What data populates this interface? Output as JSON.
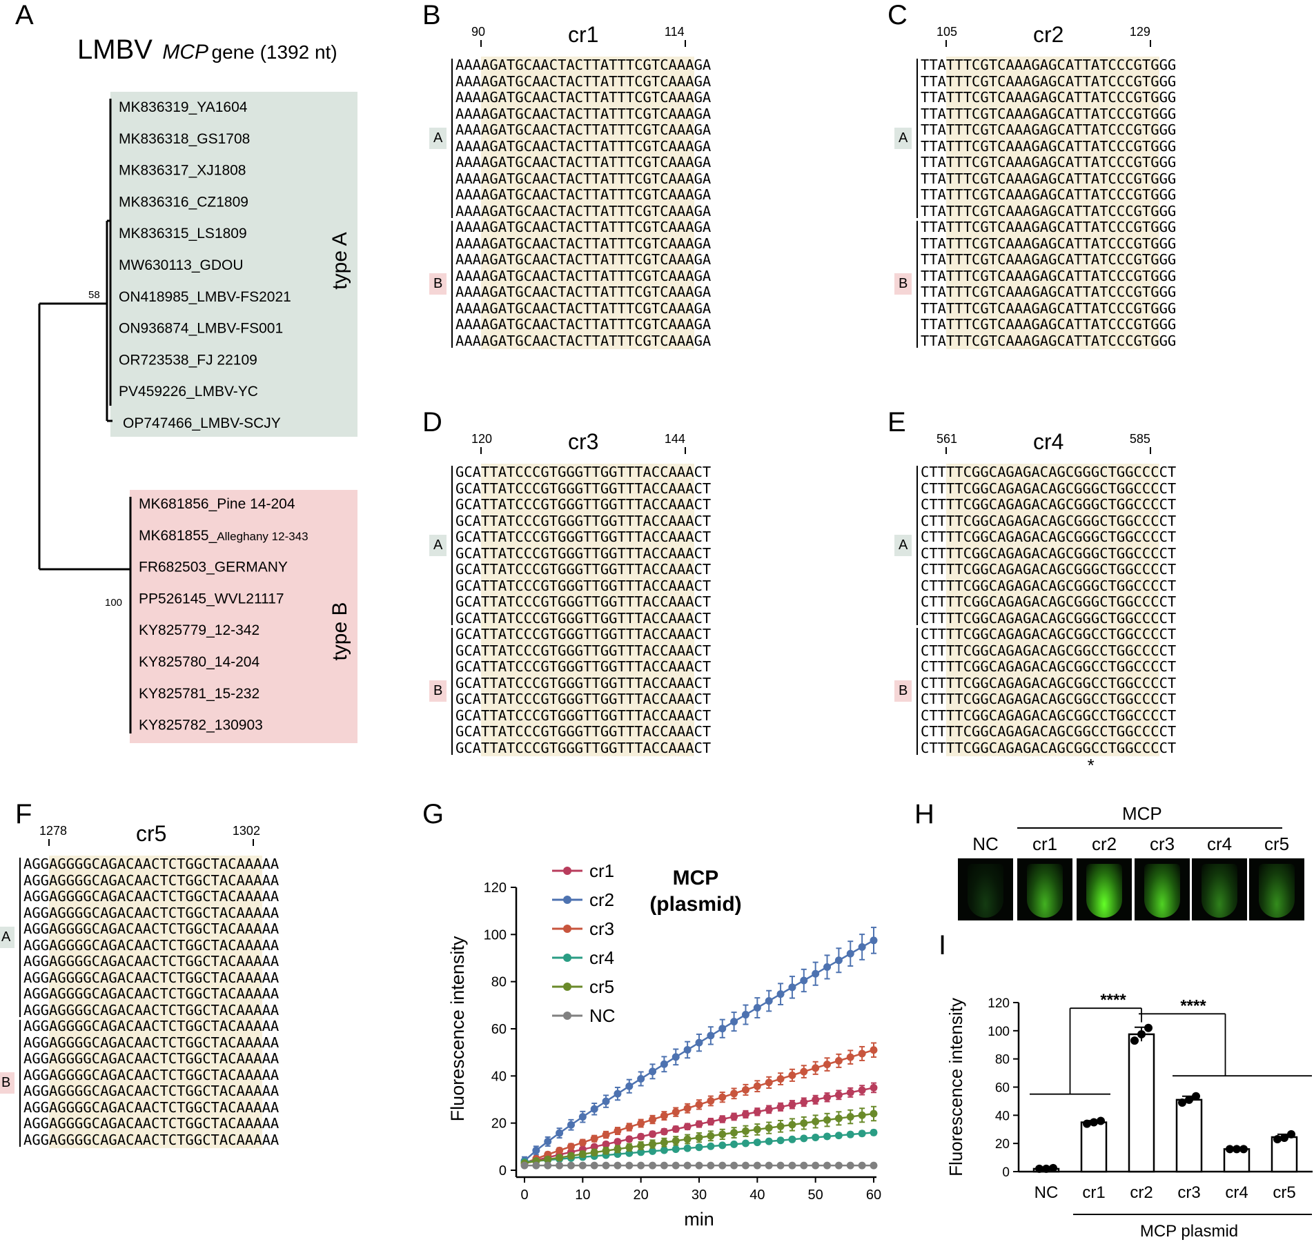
{
  "panels": {
    "A": "A",
    "B": "B",
    "C": "C",
    "D": "D",
    "E": "E",
    "F": "F",
    "G": "G",
    "H": "H",
    "I": "I"
  },
  "tree": {
    "title_prefix": "LMBV",
    "title_gene": "MCP",
    "title_suffix": "gene  (1392 nt)",
    "typeA_label": "type A",
    "typeB_label": "type B",
    "bootstrap_A": "58",
    "bootstrap_B": "100",
    "typeA_color": "#dbe5df",
    "typeB_color": "#f5d4d4",
    "typeA_taxa": [
      "MK836319_YA1604",
      "MK836318_GS1708",
      "MK836317_XJ1808",
      "MK836316_CZ1809",
      "MK836315_LS1809",
      "MW630113_GDOU",
      "ON418985_LMBV-FS2021",
      "ON936874_LMBV-FS001",
      "OR723538_FJ 22109",
      "PV459226_LMBV-YC",
      "OP747466_LMBV-SCJY"
    ],
    "typeB_taxa": [
      {
        "main": "MK681856_Pine 14-204",
        "small": ""
      },
      {
        "main": "MK681855_",
        "small": "Alleghany 12-343"
      },
      {
        "main": "FR682503_GERMANY",
        "small": ""
      },
      {
        "main": "PP526145_WVL21117",
        "small": ""
      },
      {
        "main": "KY825779_12-342",
        "small": ""
      },
      {
        "main": "KY825780_14-204",
        "small": ""
      },
      {
        "main": "KY825781_15-232",
        "small": ""
      },
      {
        "main": "KY825782_130903",
        "small": ""
      }
    ]
  },
  "group_tags": {
    "A": "A",
    "B": "B"
  },
  "alignments": {
    "cr1": {
      "name": "cr1",
      "start": "90",
      "end": "114",
      "prefix": "AAA",
      "core": "AGATGCAACTACTTATTTCGTCAAA",
      "suffix": "GA",
      "rows_A": 10,
      "rows_B": 8,
      "variant_B": ""
    },
    "cr2": {
      "name": "cr2",
      "start": "105",
      "end": "129",
      "prefix": "TTA",
      "core": "TTTCGTCAAAGAGCATTATCCCGTG",
      "suffix": "GG",
      "rows_A": 10,
      "rows_B": 8,
      "variant_B": ""
    },
    "cr3": {
      "name": "cr3",
      "start": "120",
      "end": "144",
      "prefix": "GCA",
      "core": "TTATCCCGTGGGTTGGTTTACCAAA",
      "suffix": "CT",
      "rows_A": 10,
      "rows_B": 8,
      "variant_B": ""
    },
    "cr4": {
      "name": "cr4",
      "start": "561",
      "end": "585",
      "prefix": "CTT",
      "core": "TTCGGCAGAGACAGCGGGCTGGCCC",
      "suffix": "CT",
      "rows_A": 10,
      "rows_B": 8,
      "variant_B": "TTCGGCAGAGACAGCGGCCTGGCCC",
      "mark": "*"
    },
    "cr5": {
      "name": "cr5",
      "start": "1278",
      "end": "1302",
      "prefix": "AGG",
      "core": "AGGGGCAGACAACTCTGGCTACAAA",
      "suffix": "AA",
      "rows_A": 10,
      "rows_B": 8,
      "variant_B": ""
    }
  },
  "chart_data": [
    {
      "type": "line",
      "title": "MCP (plasmid)",
      "title_line1": "MCP",
      "title_line2": "(plasmid)",
      "xlabel": "min",
      "ylabel": "Fluorescence intensity",
      "xlim": [
        0,
        60
      ],
      "ylim": [
        0,
        120
      ],
      "xticks": [
        0,
        10,
        20,
        30,
        40,
        50,
        60
      ],
      "yticks": [
        0,
        20,
        40,
        60,
        80,
        100,
        120
      ],
      "x_start": 0,
      "x_step": 2,
      "n_points": 31,
      "series": [
        {
          "name": "cr1",
          "color": "#b83c5c",
          "start": 3.0,
          "end": 35,
          "curve": 0.95,
          "err_end": 2.0
        },
        {
          "name": "cr2",
          "color": "#4d72b0",
          "start": 4.0,
          "end": 97.5,
          "curve": 0.9,
          "err_end": 5.5
        },
        {
          "name": "cr3",
          "color": "#c8553d",
          "start": 3.0,
          "end": 51,
          "curve": 0.95,
          "err_end": 3.0
        },
        {
          "name": "cr4",
          "color": "#2a9d84",
          "start": 3.5,
          "end": 16,
          "curve": 1.0,
          "err_end": 1.0
        },
        {
          "name": "cr5",
          "color": "#6a8a2a",
          "start": 3.0,
          "end": 24,
          "curve": 0.95,
          "err_end": 3.0
        },
        {
          "name": "NC",
          "color": "#808080",
          "start": 2.0,
          "end": 2.0,
          "curve": 1.0,
          "err_end": 0.3
        }
      ]
    },
    {
      "type": "bar",
      "xlabel": "MCP plasmid",
      "ylabel": "Fluorescence intensity",
      "ylim": [
        0,
        120
      ],
      "yticks": [
        0,
        20,
        40,
        60,
        80,
        100,
        120
      ],
      "categories": [
        "NC",
        "cr1",
        "cr2",
        "cr3",
        "cr4",
        "cr5"
      ],
      "values": [
        2,
        35,
        97.5,
        51,
        16,
        24.5
      ],
      "errors": [
        0.5,
        1.2,
        5.0,
        2.5,
        0.6,
        2.0
      ],
      "points": [
        [
          2,
          2,
          2.5
        ],
        [
          34,
          35,
          36
        ],
        [
          93,
          97.5,
          102
        ],
        [
          49,
          51,
          53.5
        ],
        [
          16,
          16,
          16
        ],
        [
          23,
          24,
          26.5
        ]
      ],
      "significance": [
        "****",
        "****"
      ]
    }
  ],
  "gel": {
    "group_label": "MCP",
    "lanes": [
      {
        "label": "NC",
        "brightness": 0.32
      },
      {
        "label": "cr1",
        "brightness": 0.78
      },
      {
        "label": "cr2",
        "brightness": 1.0
      },
      {
        "label": "cr3",
        "brightness": 0.88
      },
      {
        "label": "cr4",
        "brightness": 0.62
      },
      {
        "label": "cr5",
        "brightness": 0.66
      }
    ]
  }
}
